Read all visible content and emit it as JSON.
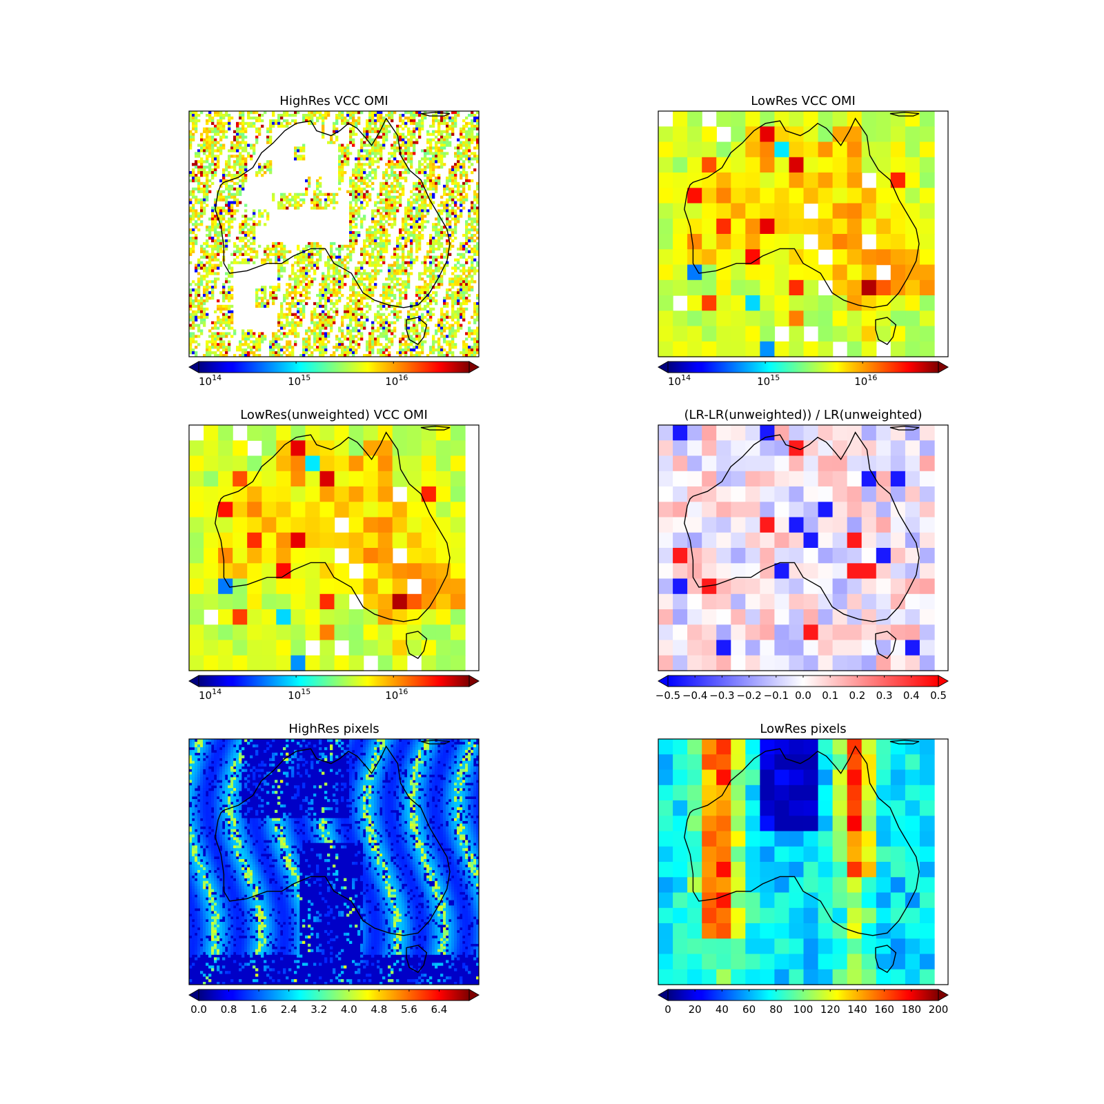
{
  "chart_data": [
    {
      "type": "heatmap",
      "title": "HighRes VCC OMI",
      "map_region": "Australia",
      "colormap": "jet",
      "color_scale": "log",
      "colorbar_ticks": [
        {
          "base": "10",
          "exp": "14"
        },
        {
          "base": "10",
          "exp": "15"
        },
        {
          "base": "10",
          "exp": "16"
        }
      ],
      "colorbar_extend": "both",
      "grid_resolution": "high",
      "missing_values": "white"
    },
    {
      "type": "heatmap",
      "title": "LowRes VCC OMI",
      "map_region": "Australia",
      "colormap": "jet",
      "color_scale": "log",
      "colorbar_ticks": [
        {
          "base": "10",
          "exp": "14"
        },
        {
          "base": "10",
          "exp": "15"
        },
        {
          "base": "10",
          "exp": "16"
        }
      ],
      "colorbar_extend": "both",
      "grid_resolution": "low",
      "missing_values": "white"
    },
    {
      "type": "heatmap",
      "title": "LowRes(unweighted) VCC OMI",
      "map_region": "Australia",
      "colormap": "jet",
      "color_scale": "log",
      "colorbar_ticks": [
        {
          "base": "10",
          "exp": "14"
        },
        {
          "base": "10",
          "exp": "15"
        },
        {
          "base": "10",
          "exp": "16"
        }
      ],
      "colorbar_extend": "both",
      "grid_resolution": "low",
      "missing_values": "white"
    },
    {
      "type": "heatmap",
      "title": "(LR-LR(unweighted)) / LR(unweighted)",
      "map_region": "Australia",
      "colormap": "bwr",
      "color_scale": "linear",
      "crange": [
        -0.5,
        0.5
      ],
      "colorbar_ticks": [
        "−0.5",
        "−0.4",
        "−0.3",
        "−0.2",
        "−0.1",
        "0.0",
        "0.1",
        "0.2",
        "0.3",
        "0.4",
        "0.5"
      ],
      "colorbar_extend": "both",
      "grid_resolution": "low"
    },
    {
      "type": "heatmap",
      "title": "HighRes pixels",
      "map_region": "Australia",
      "colormap": "jet",
      "color_scale": "linear",
      "crange": [
        0,
        7.2
      ],
      "colorbar_ticks": [
        "0.0",
        "0.8",
        "1.6",
        "2.4",
        "3.2",
        "4.0",
        "4.8",
        "5.6",
        "6.4"
      ],
      "colorbar_extend": "both",
      "grid_resolution": "high"
    },
    {
      "type": "heatmap",
      "title": "LowRes pixels",
      "map_region": "Australia",
      "colormap": "jet",
      "color_scale": "linear",
      "crange": [
        0,
        200
      ],
      "colorbar_ticks": [
        "0",
        "20",
        "40",
        "60",
        "80",
        "100",
        "120",
        "140",
        "160",
        "180",
        "200"
      ],
      "colorbar_extend": "both",
      "grid_resolution": "low"
    }
  ],
  "colors": {
    "coastline": "#000000",
    "frame": "#000000",
    "background": "#ffffff"
  }
}
